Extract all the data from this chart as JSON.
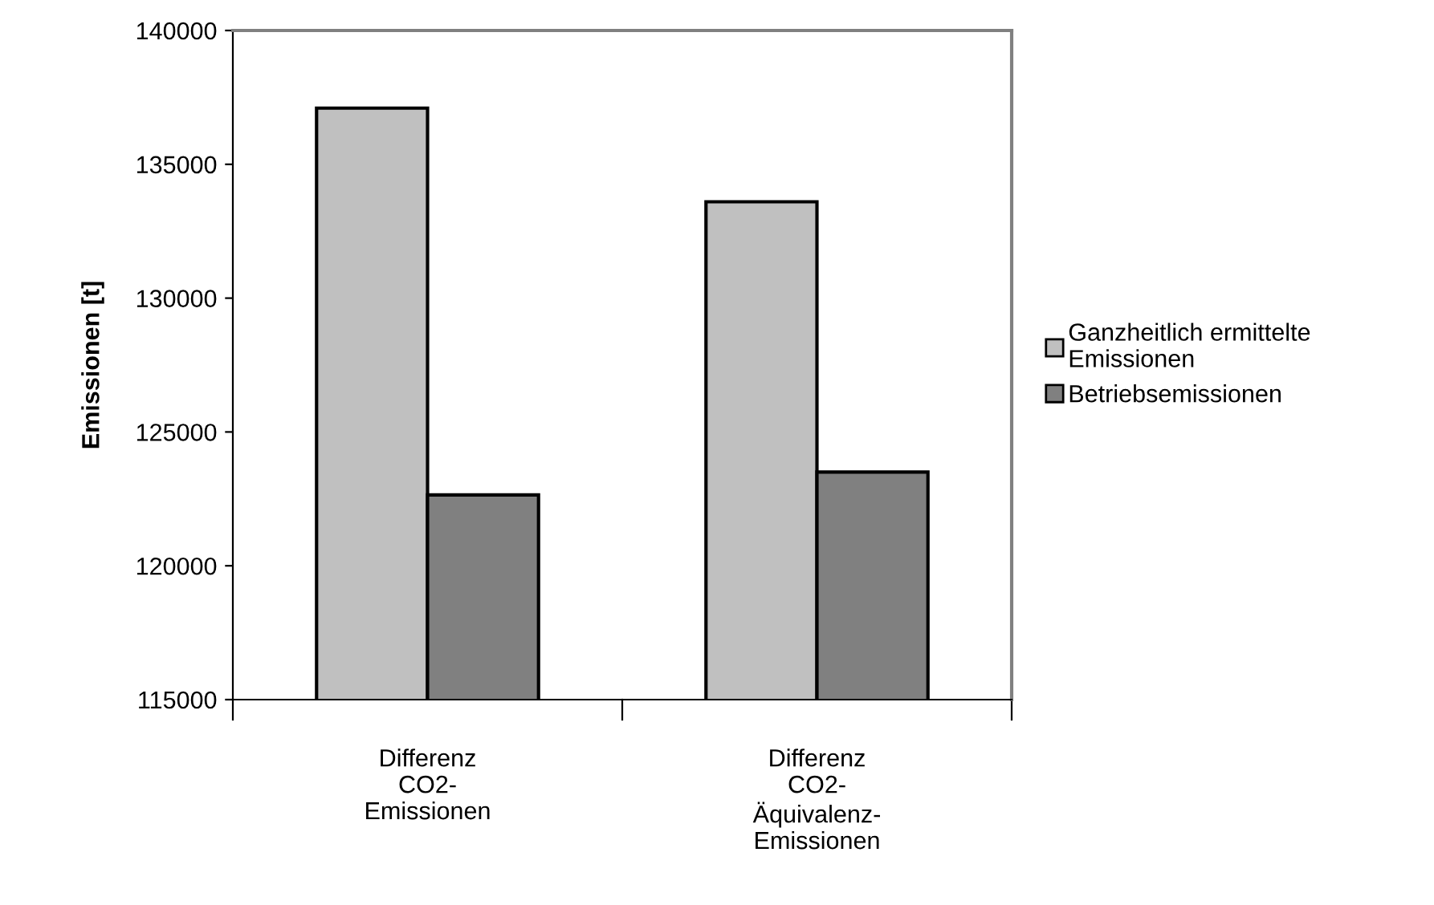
{
  "chart_data": {
    "type": "bar",
    "ylabel": "Emissionen [t]",
    "categories": [
      "Differenz\nCO2-\nEmissionen",
      "Differenz\nCO2-\nÄquivalenz-\nEmissionen"
    ],
    "series": [
      {
        "name": "Ganzheitlich ermittelte\nEmissionen",
        "color": "#c0c0c0",
        "values": [
          137100,
          133600
        ]
      },
      {
        "name": "Betriebsemissionen",
        "color": "#808080",
        "values": [
          122650,
          123500
        ]
      }
    ],
    "ylim": [
      115000,
      140000
    ],
    "yticks": [
      115000,
      120000,
      125000,
      130000,
      135000,
      140000
    ],
    "grid": false,
    "legend": "right"
  }
}
